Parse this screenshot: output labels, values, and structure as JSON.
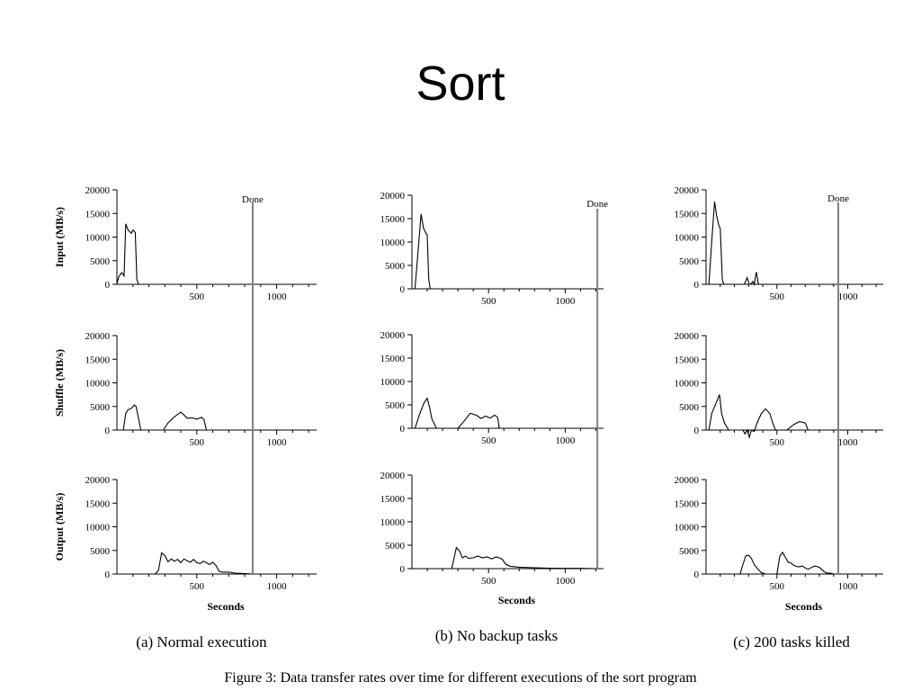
{
  "slide": {
    "title": "Sort",
    "figure_caption": "Figure 3: Data transfer rates over time for different executions of the sort program"
  },
  "chart_data": {
    "type": "line",
    "x_unit": "Seconds",
    "xlim": [
      0,
      1250
    ],
    "ylim": [
      0,
      20000
    ],
    "x_ticks": [
      500,
      1000
    ],
    "y_ticks": [
      0,
      5000,
      10000,
      15000,
      20000
    ],
    "row_labels": [
      "Input (MB/s)",
      "Shuffle (MB/s)",
      "Output (MB/s)"
    ],
    "line_color": "#000000",
    "marker_color": "#808080",
    "columns": [
      {
        "caption": "(a) Normal execution",
        "done_label": "Done",
        "done_seconds": 850,
        "xlabel": "Seconds",
        "rows": [
          {
            "name": "Input (MB/s)",
            "points": [
              [
                0,
                0
              ],
              [
                10,
                1500
              ],
              [
                30,
                2500
              ],
              [
                45,
                1800
              ],
              [
                55,
                12800
              ],
              [
                70,
                11500
              ],
              [
                90,
                10800
              ],
              [
                100,
                11500
              ],
              [
                115,
                11000
              ],
              [
                125,
                1000
              ],
              [
                135,
                0
              ]
            ]
          },
          {
            "name": "Shuffle (MB/s)",
            "points": [
              [
                0,
                0
              ],
              [
                40,
                0
              ],
              [
                55,
                3500
              ],
              [
                70,
                4300
              ],
              [
                90,
                4600
              ],
              [
                110,
                5300
              ],
              [
                120,
                5000
              ],
              [
                135,
                2500
              ],
              [
                150,
                0
              ],
              [
                290,
                0
              ],
              [
                320,
                1500
              ],
              [
                360,
                2800
              ],
              [
                400,
                3800
              ],
              [
                420,
                3200
              ],
              [
                440,
                2500
              ],
              [
                470,
                2600
              ],
              [
                500,
                2300
              ],
              [
                530,
                2700
              ],
              [
                545,
                2200
              ],
              [
                560,
                0
              ]
            ]
          },
          {
            "name": "Output (MB/s)",
            "points": [
              [
                0,
                0
              ],
              [
                240,
                0
              ],
              [
                260,
                800
              ],
              [
                280,
                4500
              ],
              [
                300,
                3900
              ],
              [
                320,
                2600
              ],
              [
                340,
                3200
              ],
              [
                360,
                2700
              ],
              [
                380,
                3100
              ],
              [
                400,
                2400
              ],
              [
                420,
                3200
              ],
              [
                440,
                2800
              ],
              [
                460,
                2500
              ],
              [
                480,
                3100
              ],
              [
                500,
                2400
              ],
              [
                520,
                2200
              ],
              [
                540,
                2700
              ],
              [
                560,
                2400
              ],
              [
                580,
                2000
              ],
              [
                600,
                2500
              ],
              [
                620,
                1800
              ],
              [
                640,
                600
              ],
              [
                660,
                400
              ],
              [
                700,
                400
              ],
              [
                740,
                200
              ],
              [
                800,
                100
              ],
              [
                850,
                0
              ]
            ]
          }
        ]
      },
      {
        "caption": "(b) No backup tasks",
        "done_label": "Done",
        "done_seconds": 1210,
        "xlabel": "Seconds",
        "rows": [
          {
            "name": "Input (MB/s)",
            "points": [
              [
                0,
                0
              ],
              [
                20,
                0
              ],
              [
                40,
                8000
              ],
              [
                60,
                16000
              ],
              [
                75,
                13000
              ],
              [
                90,
                12000
              ],
              [
                100,
                11500
              ],
              [
                110,
                2000
              ],
              [
                120,
                0
              ]
            ]
          },
          {
            "name": "Shuffle (MB/s)",
            "points": [
              [
                0,
                0
              ],
              [
                20,
                0
              ],
              [
                50,
                3000
              ],
              [
                80,
                5500
              ],
              [
                100,
                6400
              ],
              [
                115,
                4500
              ],
              [
                130,
                2000
              ],
              [
                160,
                0
              ],
              [
                300,
                0
              ],
              [
                340,
                1500
              ],
              [
                380,
                3200
              ],
              [
                420,
                2800
              ],
              [
                450,
                2100
              ],
              [
                480,
                2600
              ],
              [
                510,
                2200
              ],
              [
                540,
                2800
              ],
              [
                560,
                2300
              ],
              [
                570,
                0
              ]
            ]
          },
          {
            "name": "Output (MB/s)",
            "points": [
              [
                0,
                0
              ],
              [
                260,
                0
              ],
              [
                290,
                4500
              ],
              [
                310,
                3800
              ],
              [
                330,
                2300
              ],
              [
                350,
                2700
              ],
              [
                370,
                2200
              ],
              [
                400,
                2300
              ],
              [
                430,
                2700
              ],
              [
                460,
                2300
              ],
              [
                490,
                2500
              ],
              [
                520,
                2100
              ],
              [
                550,
                2500
              ],
              [
                570,
                2300
              ],
              [
                590,
                2000
              ],
              [
                610,
                1000
              ],
              [
                640,
                500
              ],
              [
                700,
                300
              ],
              [
                800,
                200
              ],
              [
                900,
                100
              ],
              [
                1000,
                50
              ],
              [
                1100,
                50
              ],
              [
                1200,
                0
              ]
            ]
          }
        ]
      },
      {
        "caption": "(c) 200 tasks killed",
        "done_label": "Done",
        "done_seconds": 933,
        "xlabel": "Seconds",
        "rows": [
          {
            "name": "Input (MB/s)",
            "points": [
              [
                0,
                0
              ],
              [
                20,
                0
              ],
              [
                40,
                9000
              ],
              [
                60,
                17500
              ],
              [
                75,
                14500
              ],
              [
                90,
                12500
              ],
              [
                100,
                11800
              ],
              [
                115,
                1000
              ],
              [
                125,
                0
              ],
              [
                270,
                0
              ],
              [
                290,
                1400
              ],
              [
                305,
                0
              ],
              [
                315,
                0
              ],
              [
                330,
                600
              ],
              [
                340,
                0
              ],
              [
                355,
                2600
              ],
              [
                370,
                0
              ]
            ]
          },
          {
            "name": "Shuffle (MB/s)",
            "points": [
              [
                0,
                0
              ],
              [
                20,
                0
              ],
              [
                40,
                3500
              ],
              [
                65,
                5300
              ],
              [
                80,
                6400
              ],
              [
                95,
                7500
              ],
              [
                110,
                3500
              ],
              [
                130,
                1500
              ],
              [
                160,
                0
              ],
              [
                260,
                0
              ],
              [
                275,
                -800
              ],
              [
                290,
                0
              ],
              [
                305,
                -1500
              ],
              [
                320,
                0
              ],
              [
                340,
                -300
              ],
              [
                360,
                1500
              ],
              [
                390,
                3500
              ],
              [
                420,
                4500
              ],
              [
                450,
                3500
              ],
              [
                470,
                1500
              ],
              [
                490,
                0
              ],
              [
                570,
                0
              ],
              [
                620,
                1200
              ],
              [
                660,
                1800
              ],
              [
                700,
                1500
              ],
              [
                720,
                0
              ]
            ]
          },
          {
            "name": "Output (MB/s)",
            "points": [
              [
                0,
                0
              ],
              [
                240,
                0
              ],
              [
                260,
                2000
              ],
              [
                280,
                3800
              ],
              [
                300,
                4000
              ],
              [
                320,
                3300
              ],
              [
                340,
                2000
              ],
              [
                370,
                900
              ],
              [
                390,
                300
              ],
              [
                420,
                0
              ],
              [
                500,
                0
              ],
              [
                520,
                3800
              ],
              [
                540,
                4600
              ],
              [
                560,
                3500
              ],
              [
                580,
                2500
              ],
              [
                600,
                2300
              ],
              [
                620,
                1800
              ],
              [
                650,
                1500
              ],
              [
                680,
                1700
              ],
              [
                700,
                1300
              ],
              [
                720,
                1000
              ],
              [
                750,
                1500
              ],
              [
                770,
                1700
              ],
              [
                800,
                1400
              ],
              [
                830,
                600
              ],
              [
                850,
                200
              ],
              [
                880,
                200
              ],
              [
                900,
                0
              ]
            ]
          }
        ]
      }
    ]
  }
}
